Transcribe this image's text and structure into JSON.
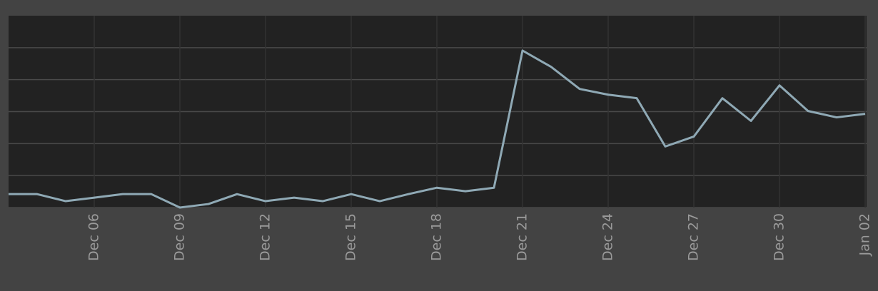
{
  "chart_data": {
    "type": "line",
    "categories": [
      null,
      null,
      null,
      "Dec 06",
      null,
      null,
      "Dec 09",
      null,
      null,
      "Dec 12",
      null,
      null,
      "Dec 15",
      null,
      null,
      "Dec 18",
      null,
      null,
      "Dec 21",
      null,
      null,
      "Dec 24",
      null,
      null,
      "Dec 27",
      null,
      null,
      "Dec 30",
      null,
      null,
      "Jan 02"
    ],
    "series": [
      {
        "color": "#8fa9b5",
        "values": [
          0.42,
          0.42,
          0.2,
          0.31,
          0.42,
          0.42,
          0,
          0.11,
          0.42,
          0.2,
          0.31,
          0.2,
          0.42,
          0.2,
          0.42,
          0.62,
          0.51,
          0.62,
          4.91,
          4.4,
          3.71,
          3.53,
          3.42,
          1.91,
          2.22,
          3.42,
          2.71,
          3.82,
          3.02,
          2.82,
          2.93
        ]
      }
    ],
    "ylim": [
      0,
      6
    ],
    "yticks": [
      0,
      1,
      2,
      3,
      4,
      5
    ],
    "grid": true
  }
}
